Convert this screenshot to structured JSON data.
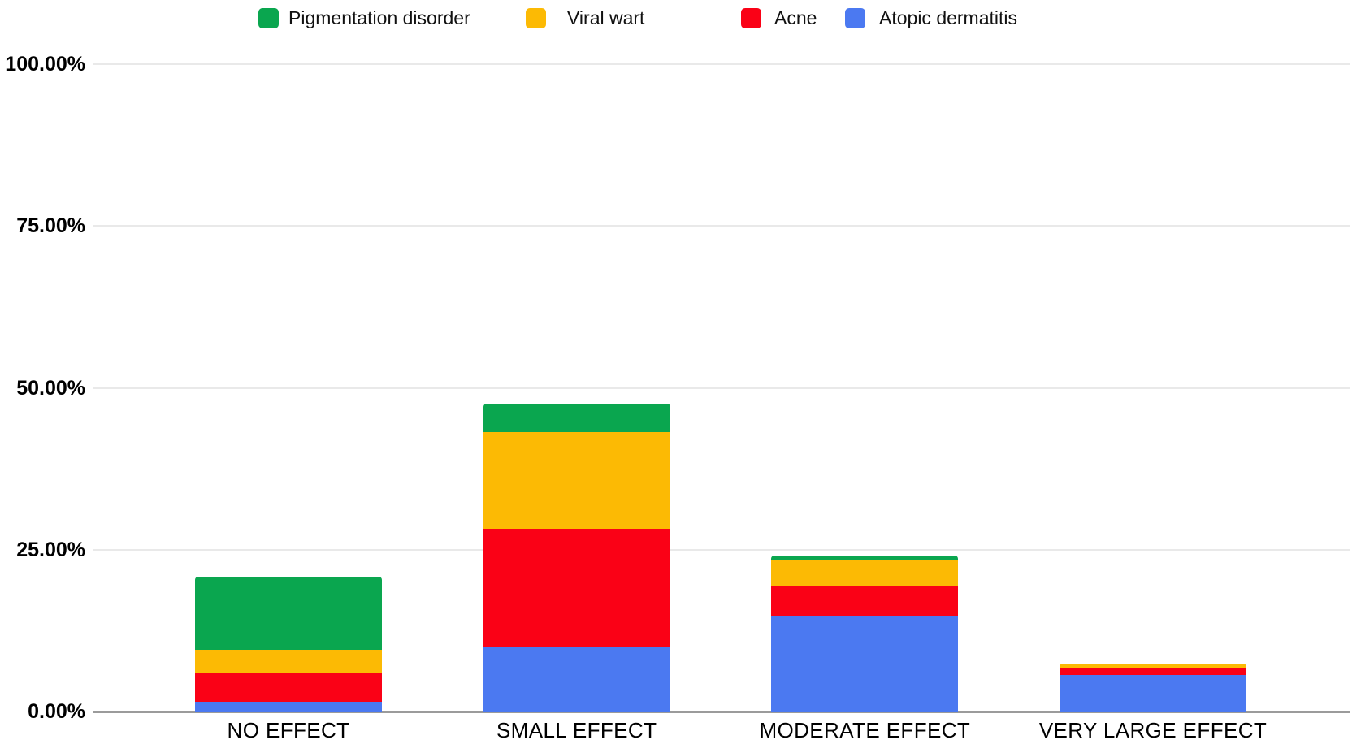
{
  "chart_data": {
    "type": "bar",
    "stacked": true,
    "orientation": "vertical",
    "title": "",
    "xlabel": "",
    "ylabel": "",
    "categories": [
      "NO EFFECT",
      "SMALL EFFECT",
      "MODERATE EFFECT",
      "VERY LARGE EFFECT"
    ],
    "series": [
      {
        "name": "Atopic dermatitis",
        "color": "#4B79F1",
        "values": [
          1.5,
          10.0,
          14.7,
          5.7
        ]
      },
      {
        "name": "Acne",
        "color": "#FA0116",
        "values": [
          4.5,
          18.2,
          4.6,
          0.9
        ]
      },
      {
        "name": "Viral wart",
        "color": "#FCBA04",
        "values": [
          3.5,
          15.0,
          4.0,
          0.8
        ]
      },
      {
        "name": "Pigmentation disorder",
        "color": "#0AA64F",
        "values": [
          11.3,
          4.4,
          0.8,
          0
        ]
      }
    ],
    "stack_order_bottom_to_top": [
      "Atopic dermatitis",
      "Acne",
      "Viral wart",
      "Pigmentation disorder"
    ],
    "legend_order": [
      "Pigmentation disorder",
      "Viral wart",
      "Acne",
      "Atopic dermatitis"
    ],
    "legend_position": "top",
    "y_ticks": [
      {
        "label": "100.00%",
        "value": 100
      },
      {
        "label": "75.00%",
        "value": 75
      },
      {
        "label": "50.00%",
        "value": 50
      },
      {
        "label": "25.00%",
        "value": 25
      },
      {
        "label": "0.00%",
        "value": 0
      }
    ],
    "ylim": [
      0,
      100
    ],
    "grid": true,
    "colors": {
      "grid": "#E9E9E9",
      "axis": "#9B9B9B",
      "text": "#000000"
    }
  }
}
